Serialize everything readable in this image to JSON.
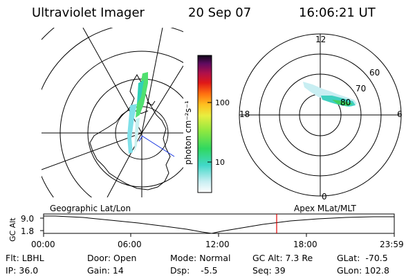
{
  "header": {
    "instrument": "Ultraviolet Imager",
    "date": "20 Sep 07",
    "time": "16:06:21 UT"
  },
  "geo_panel": {
    "title": "Geographic Lat/Lon"
  },
  "mag_panel": {
    "title": "Apex MLat/MLT",
    "mlt_labels": [
      "12",
      "6",
      "0",
      "18"
    ],
    "lat_labels": [
      "60",
      "70",
      "80"
    ]
  },
  "colorbar": {
    "unit_label": "photon cm⁻²s⁻¹",
    "ticks": [
      "100",
      "10"
    ]
  },
  "alt_plot": {
    "ylabel": "GC Alt",
    "ytick_top": "9.0",
    "ytick_bottom": "1.8",
    "xticks": [
      "00:00",
      "06:00",
      "12:00",
      "18:00",
      "23:59"
    ],
    "marker_time": "16:06",
    "marker_color": "#e00000"
  },
  "info": {
    "flt": "Flt: LBHL",
    "ip": "IP: 36.0",
    "door": "Door: Open",
    "gain": "Gain: 14",
    "mode": "Mode: Normal",
    "dsp": "Dsp:    -5.5",
    "gcalt": "GC Alt: 7.3 Re",
    "seq": "Seq: 39",
    "glat": "GLat:  -70.5",
    "glon": "GLon: 102.8"
  }
}
